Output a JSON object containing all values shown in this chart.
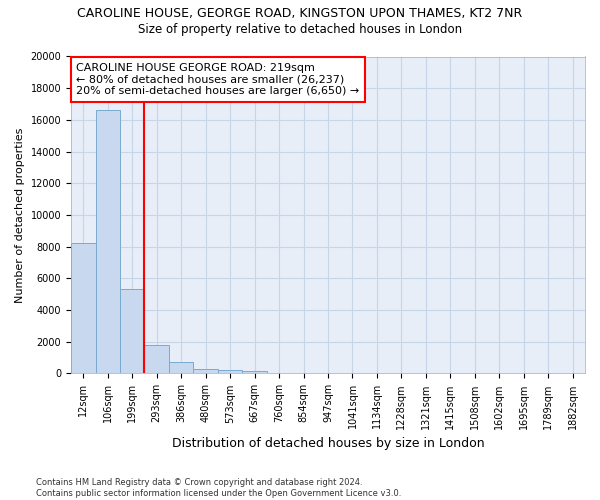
{
  "title": "CAROLINE HOUSE, GEORGE ROAD, KINGSTON UPON THAMES, KT2 7NR",
  "subtitle": "Size of property relative to detached houses in London",
  "xlabel": "Distribution of detached houses by size in London",
  "ylabel": "Number of detached properties",
  "bar_color": "#c8d8ee",
  "bar_edge_color": "#7aaad0",
  "bin_labels": [
    "12sqm",
    "106sqm",
    "199sqm",
    "293sqm",
    "386sqm",
    "480sqm",
    "573sqm",
    "667sqm",
    "760sqm",
    "854sqm",
    "947sqm",
    "1041sqm",
    "1134sqm",
    "1228sqm",
    "1321sqm",
    "1415sqm",
    "1508sqm",
    "1602sqm",
    "1695sqm",
    "1789sqm",
    "1882sqm"
  ],
  "bar_heights": [
    8200,
    16600,
    5300,
    1800,
    750,
    300,
    220,
    150,
    0,
    0,
    0,
    0,
    0,
    0,
    0,
    0,
    0,
    0,
    0,
    0,
    0
  ],
  "red_line_bin_index": 2,
  "annotation_line1": "CAROLINE HOUSE GEORGE ROAD: 219sqm",
  "annotation_line2": "← 80% of detached houses are smaller (26,237)",
  "annotation_line3": "20% of semi-detached houses are larger (6,650) →",
  "ylim_max": 20000,
  "yticks": [
    0,
    2000,
    4000,
    6000,
    8000,
    10000,
    12000,
    14000,
    16000,
    18000,
    20000
  ],
  "grid_color": "#c8d4e8",
  "background_color": "#e8eef8",
  "footnote_line1": "Contains HM Land Registry data © Crown copyright and database right 2024.",
  "footnote_line2": "Contains public sector information licensed under the Open Government Licence v3.0.",
  "title_fontsize": 9,
  "subtitle_fontsize": 8.5,
  "xlabel_fontsize": 9,
  "ylabel_fontsize": 8,
  "tick_fontsize": 7,
  "annot_fontsize": 8
}
